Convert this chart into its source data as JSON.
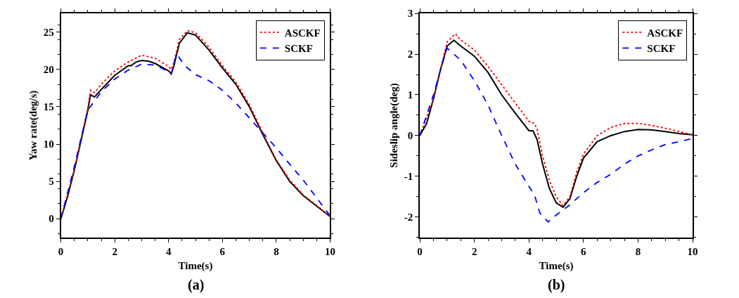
{
  "chart_data": [
    {
      "type": "line",
      "xlabel": "Time(s)",
      "ylabel": "Yaw rate(deg/s)",
      "xlim": [
        0,
        10
      ],
      "xticks": [
        0,
        2,
        4,
        6,
        8,
        10
      ],
      "ylim": [
        -2.5,
        27.5
      ],
      "yticks": [
        0,
        5,
        10,
        15,
        20,
        25
      ],
      "legend": "top right",
      "marker": "none",
      "annotations": [
        "(a)"
      ],
      "series": [
        {
          "color": "#000000",
          "line_style": "solid",
          "x": [
            0,
            0.25,
            0.5,
            0.75,
            1.0,
            1.1,
            1.25,
            1.5,
            2,
            2.5,
            2.6,
            2.8,
            3,
            3.25,
            3.5,
            4,
            4.1,
            4.2,
            4.4,
            4.7,
            5,
            5.5,
            6,
            6.5,
            7,
            7.5,
            8,
            8.5,
            9,
            9.5,
            10
          ],
          "values": [
            0,
            3,
            6.5,
            10.5,
            14.5,
            16.6,
            16.3,
            17.3,
            19.2,
            20.5,
            20.5,
            21,
            21.2,
            21.1,
            20.8,
            19.8,
            19.4,
            20.5,
            23.5,
            24.9,
            24.6,
            22.6,
            20.2,
            18,
            15,
            11.3,
            7.8,
            5,
            3.1,
            1.7,
            0.3
          ]
        },
        {
          "name": "ASCKF",
          "color": "#ff0000",
          "line_style": "dotted",
          "x": [
            0,
            0.5,
            1,
            1.1,
            1.25,
            1.5,
            2,
            2.5,
            3,
            3.5,
            4,
            4.1,
            4.2,
            4.4,
            4.7,
            5,
            5.5,
            6,
            6.5,
            7,
            7.5,
            8,
            8.5,
            9,
            9.5,
            10
          ],
          "values": [
            0,
            6.6,
            14.8,
            17.2,
            16.9,
            18,
            19.8,
            21,
            21.9,
            21.5,
            20.4,
            20.0,
            21,
            24,
            25.2,
            24.9,
            23,
            20.5,
            18.3,
            15.3,
            11.5,
            7.9,
            5.2,
            3.2,
            1.8,
            0.3
          ]
        },
        {
          "name": "SCKF",
          "color": "#0000ff",
          "line_style": "dashed",
          "x": [
            0,
            0.25,
            0.5,
            0.75,
            1,
            1.25,
            1.5,
            2,
            2.5,
            3,
            3.5,
            4,
            4.1,
            4.3,
            4.6,
            5,
            5.5,
            6,
            6.5,
            7,
            7.5,
            8,
            8.5,
            9,
            9.5,
            10
          ],
          "values": [
            0,
            3.5,
            7,
            10.8,
            14.5,
            15.8,
            17,
            18.7,
            19.9,
            20.7,
            20.6,
            19.7,
            19.4,
            22.1,
            20.5,
            19.3,
            18.5,
            17.2,
            15.5,
            13.5,
            11.5,
            9.5,
            7.3,
            5.2,
            2.8,
            0.4
          ]
        }
      ]
    },
    {
      "type": "line",
      "xlabel": "Time(s)",
      "ylabel": "Sideslip angle(deg)",
      "xlim": [
        0,
        10
      ],
      "xticks": [
        0,
        2,
        4,
        6,
        8,
        10
      ],
      "ylim": [
        -2.5,
        3
      ],
      "yticks": [
        -2,
        -1,
        0,
        1,
        2,
        3
      ],
      "legend": "top right",
      "marker": "none",
      "annotations": [
        "(b)"
      ],
      "series": [
        {
          "color": "#000000",
          "line_style": "solid",
          "x": [
            0,
            0.25,
            0.5,
            0.75,
            1,
            1.25,
            1.5,
            2,
            2.5,
            3,
            3.5,
            4,
            4.15,
            4.3,
            4.5,
            4.75,
            5,
            5.25,
            5.5,
            5.75,
            6,
            6.5,
            7,
            7.5,
            8,
            8.5,
            9,
            9.5,
            10
          ],
          "values": [
            0,
            0.3,
            0.9,
            1.6,
            2.2,
            2.34,
            2.2,
            1.95,
            1.55,
            1.0,
            0.55,
            0.12,
            0.12,
            -0.1,
            -0.7,
            -1.3,
            -1.65,
            -1.76,
            -1.55,
            -1.0,
            -0.55,
            -0.15,
            0.0,
            0.1,
            0.15,
            0.14,
            0.1,
            0.05,
            0.02
          ]
        },
        {
          "name": "ASCKF",
          "color": "#ff0000",
          "line_style": "dotted",
          "x": [
            0,
            0.5,
            1,
            1.3,
            1.5,
            2,
            2.5,
            3,
            3.5,
            4,
            4.2,
            4.3,
            4.5,
            4.75,
            5,
            5.25,
            5.5,
            5.75,
            6,
            6.5,
            7,
            7.5,
            8,
            8.5,
            9,
            9.5,
            10
          ],
          "values": [
            0,
            0.9,
            2.3,
            2.5,
            2.35,
            2.1,
            1.7,
            1.25,
            0.8,
            0.35,
            0.3,
            0.15,
            -0.5,
            -1.1,
            -1.5,
            -1.72,
            -1.5,
            -0.9,
            -0.45,
            0.0,
            0.2,
            0.3,
            0.3,
            0.25,
            0.18,
            0.1,
            0.02
          ]
        },
        {
          "name": "SCKF",
          "color": "#0000ff",
          "line_style": "dashed",
          "x": [
            0,
            0.25,
            0.5,
            0.75,
            1,
            1.5,
            2,
            2.5,
            3,
            3.5,
            4,
            4.2,
            4.4,
            4.7,
            5,
            5.5,
            6,
            6.5,
            7,
            7.5,
            8,
            8.5,
            9,
            9.5,
            10
          ],
          "values": [
            0,
            0.5,
            1.0,
            1.6,
            2.15,
            1.85,
            1.35,
            0.75,
            0.0,
            -0.7,
            -1.25,
            -1.45,
            -1.9,
            -2.12,
            -1.95,
            -1.7,
            -1.4,
            -1.15,
            -0.95,
            -0.7,
            -0.5,
            -0.35,
            -0.22,
            -0.15,
            -0.07
          ]
        }
      ]
    }
  ]
}
